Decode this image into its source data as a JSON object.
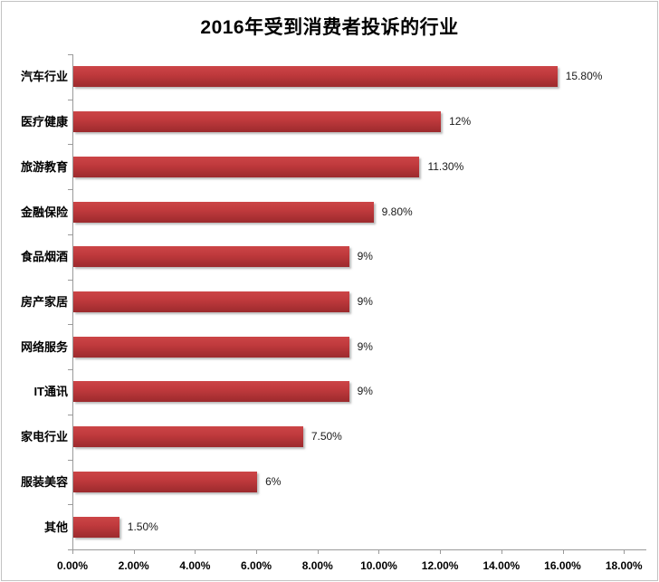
{
  "title": "2016年受到消费者投诉的行业",
  "chart_data": {
    "type": "bar",
    "orientation": "horizontal",
    "title": "2016年受到消费者投诉的行业",
    "categories": [
      "汽车行业",
      "医疗健康",
      "旅游教育",
      "金融保险",
      "食品烟酒",
      "房产家居",
      "网络服务",
      "IT通讯",
      "家电行业",
      "服装美容",
      "其他"
    ],
    "values": [
      15.8,
      12,
      11.3,
      9.8,
      9,
      9,
      9,
      9,
      7.5,
      6,
      1.5
    ],
    "value_labels": [
      "15.80%",
      "12%",
      "11.30%",
      "9.80%",
      "9%",
      "9%",
      "9%",
      "9%",
      "7.50%",
      "6%",
      "1.50%"
    ],
    "xlabel": "",
    "ylabel": "",
    "xlim": [
      0,
      18
    ],
    "x_tick_step": 2,
    "x_tick_labels": [
      "0.00%",
      "2.00%",
      "4.00%",
      "6.00%",
      "8.00%",
      "10.00%",
      "12.00%",
      "14.00%",
      "16.00%",
      "18.00%"
    ],
    "grid": false,
    "legend": false,
    "bar_color_top": "#cc4547",
    "bar_color_bottom": "#9c2b2e",
    "axis_color": "#9a9a9a",
    "background": "#ffffff"
  }
}
